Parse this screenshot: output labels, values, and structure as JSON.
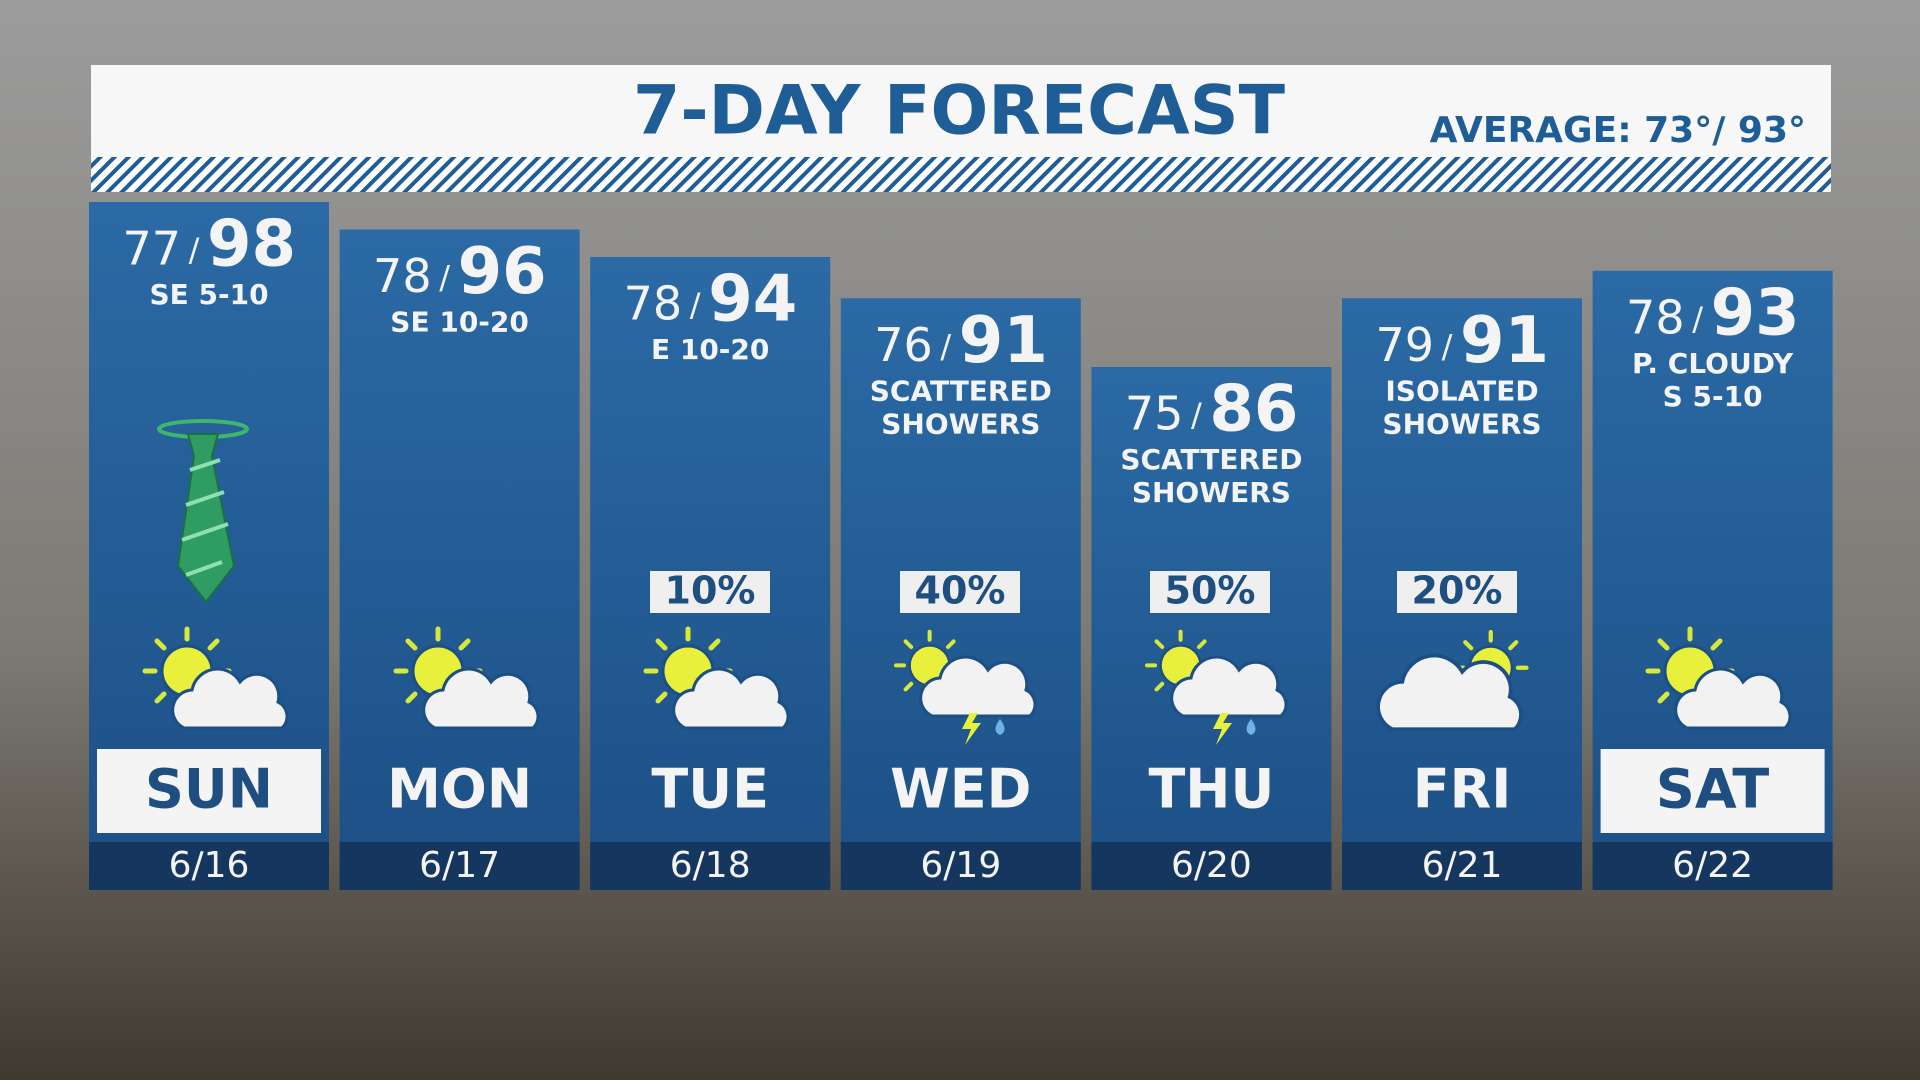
{
  "header": {
    "title": "7-DAY FORECAST",
    "average": "AVERAGE: 73°/ 93°"
  },
  "separator": "/",
  "days": [
    {
      "low": 77,
      "high": 98,
      "details": [
        "SE 5-10"
      ],
      "day": "SUN",
      "date": "6/16"
    },
    {
      "low": 78,
      "high": 96,
      "details": [
        "SE 10-20"
      ],
      "day": "MON",
      "date": "6/17"
    },
    {
      "low": 78,
      "high": 94,
      "details": [
        "E 10-20"
      ],
      "precip": "10%",
      "day": "TUE",
      "date": "6/18"
    },
    {
      "low": 76,
      "high": 91,
      "details": [
        "SCATTERED",
        "SHOWERS"
      ],
      "precip": "40%",
      "day": "WED",
      "date": "6/19"
    },
    {
      "low": 75,
      "high": 86,
      "details": [
        "SCATTERED",
        "SHOWERS"
      ],
      "precip": "50%",
      "day": "THU",
      "date": "6/20"
    },
    {
      "low": 79,
      "high": 91,
      "details": [
        "ISOLATED",
        "SHOWERS"
      ],
      "precip": "20%",
      "day": "FRI",
      "date": "6/21"
    },
    {
      "low": 78,
      "high": 93,
      "details": [
        "P. CLOUDY",
        "S 5-10"
      ],
      "day": "SAT",
      "date": "6/22"
    }
  ]
}
